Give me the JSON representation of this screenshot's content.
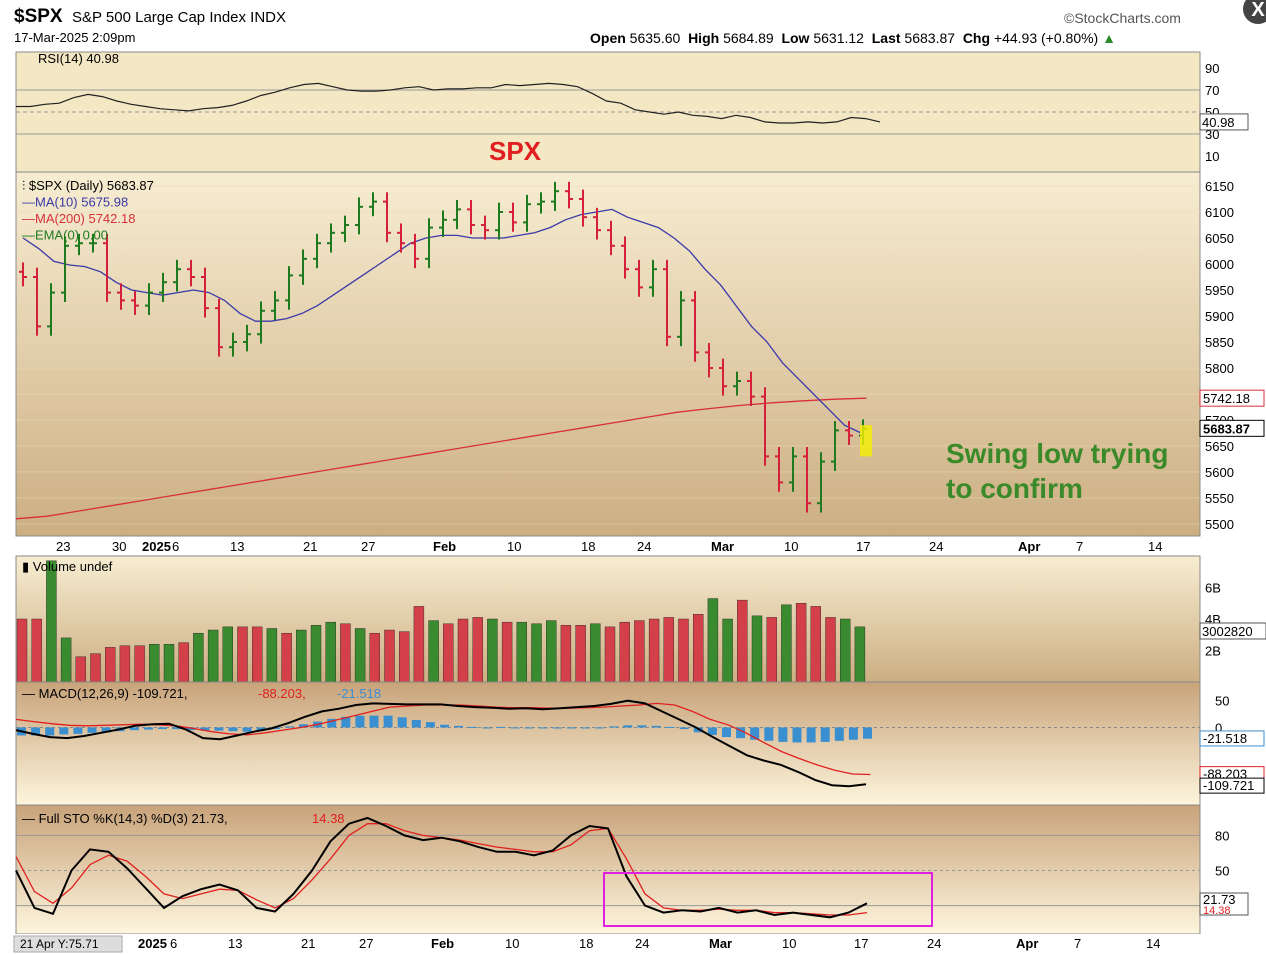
{
  "header": {
    "symbol": "$SPX",
    "name": "S&P 500 Large Cap Index  INDX",
    "date": "17-Mar-2025 2:09pm",
    "brand": "©StockCharts.com",
    "quote_open_label": "Open",
    "quote_open": "5635.60",
    "quote_high_label": "High",
    "quote_high": "5684.89",
    "quote_low_label": "Low",
    "quote_low": "5631.12",
    "quote_last_label": "Last",
    "quote_last": "5683.87",
    "quote_chg_label": "Chg",
    "quote_chg": "+44.93 (+0.80%)",
    "close_icon": "X"
  },
  "chart_data": [
    {
      "type": "line",
      "panel": "RSI",
      "legend": "RSI(14) 40.98",
      "ylim": [
        0,
        100
      ],
      "yticks": [
        "90",
        "70",
        "50",
        "30",
        "10"
      ],
      "last_value_label": "40.98",
      "values": [
        55,
        55,
        57,
        58,
        63,
        66,
        64,
        60,
        57,
        55,
        53,
        52,
        51,
        53,
        54,
        56,
        60,
        65,
        68,
        72,
        75,
        76,
        73,
        70,
        69,
        69,
        70,
        72,
        73,
        70,
        71,
        71,
        72,
        72,
        75,
        74,
        75,
        76,
        75,
        73,
        67,
        60,
        58,
        52,
        50,
        48,
        50,
        47,
        46,
        44,
        47,
        45,
        41,
        40,
        40,
        41,
        40,
        41,
        45,
        44,
        41
      ]
    },
    {
      "type": "ohlc",
      "panel": "Price",
      "title": "SPX",
      "legend": [
        "$SPX (Daily) 5683.87",
        "MA(10) 5675.98",
        "MA(200) 5742.18",
        "EMA(0) 0.00"
      ],
      "ylim": [
        5480,
        6170
      ],
      "yticks": [
        "6150",
        "6100",
        "6050",
        "6000",
        "5950",
        "5900",
        "5850",
        "5800",
        "5750",
        "5700",
        "5650",
        "5600",
        "5550",
        "5500"
      ],
      "xticks": [
        "23",
        "30",
        "2025",
        "6",
        "13",
        "21",
        "27",
        "Feb",
        "10",
        "18",
        "24",
        "Mar",
        "10",
        "17",
        "24",
        "Apr",
        "7",
        "14"
      ],
      "price_labels": [
        "5742.18",
        "5683.87"
      ],
      "annotation": "Swing low trying to confirm",
      "close": [
        5975,
        5880,
        5945,
        6035,
        6040,
        6040,
        5945,
        5930,
        5920,
        5945,
        5965,
        5990,
        5975,
        5915,
        5840,
        5850,
        5865,
        5910,
        5930,
        5978,
        6010,
        6040,
        6060,
        6075,
        6110,
        6120,
        6060,
        6040,
        6010,
        6070,
        6085,
        6105,
        6075,
        6065,
        6100,
        6080,
        6115,
        6120,
        6140,
        6125,
        6090,
        6065,
        6035,
        5990,
        5955,
        5990,
        5860,
        5930,
        5830,
        5800,
        5765,
        5775,
        5745,
        5630,
        5580,
        5630,
        5540,
        5620,
        5680,
        5670,
        5683
      ],
      "ma10": [
        6050,
        6030,
        6005,
        5998,
        5995,
        5985,
        5965,
        5950,
        5945,
        5940,
        5945,
        5950,
        5945,
        5930,
        5905,
        5890,
        5890,
        5895,
        5905,
        5920,
        5940,
        5960,
        5980,
        6000,
        6020,
        6040,
        6050,
        6055,
        6055,
        6050,
        6050,
        6050,
        6055,
        6060,
        6070,
        6085,
        6095,
        6100,
        6105,
        6090,
        6080,
        6070,
        6050,
        6025,
        5990,
        5960,
        5920,
        5880,
        5850,
        5810,
        5780,
        5750,
        5720,
        5690,
        5676
      ],
      "ma200": [
        5510,
        5515,
        5525,
        5535,
        5545,
        5555,
        5565,
        5575,
        5585,
        5595,
        5605,
        5615,
        5625,
        5635,
        5645,
        5655,
        5665,
        5675,
        5685,
        5695,
        5705,
        5715,
        5722,
        5728,
        5733,
        5737,
        5740,
        5742
      ]
    },
    {
      "type": "bar",
      "panel": "Volume",
      "legend": "Volume undef",
      "yticks": [
        "6B",
        "4B",
        "2B"
      ],
      "last_value_label": "3002820",
      "values": [
        4.0,
        4.0,
        7.7,
        2.8,
        1.6,
        1.8,
        2.2,
        2.3,
        2.3,
        2.4,
        2.4,
        2.5,
        3.1,
        3.3,
        3.5,
        3.5,
        3.5,
        3.4,
        3.1,
        3.3,
        3.6,
        3.8,
        3.7,
        3.4,
        3.1,
        3.3,
        3.2,
        4.8,
        3.9,
        3.7,
        4.0,
        4.1,
        4.0,
        3.8,
        3.8,
        3.7,
        3.9,
        3.6,
        3.6,
        3.7,
        3.5,
        3.8,
        3.9,
        4.0,
        4.1,
        4.0,
        4.3,
        5.3,
        4.0,
        5.2,
        4.2,
        4.1,
        4.9,
        5.0,
        4.8,
        4.1,
        4.0,
        3.5
      ],
      "colors": [
        "r",
        "r",
        "g",
        "g",
        "r",
        "r",
        "r",
        "r",
        "r",
        "g",
        "g",
        "r",
        "g",
        "g",
        "g",
        "r",
        "r",
        "g",
        "r",
        "g",
        "g",
        "g",
        "r",
        "g",
        "r",
        "r",
        "r",
        "r",
        "g",
        "r",
        "r",
        "r",
        "g",
        "r",
        "g",
        "g",
        "g",
        "r",
        "r",
        "g",
        "r",
        "r",
        "r",
        "r",
        "r",
        "r",
        "r",
        "g",
        "g",
        "r",
        "g",
        "r",
        "g",
        "r",
        "r",
        "r",
        "g",
        "g"
      ]
    },
    {
      "type": "line",
      "panel": "MACD",
      "legend_prefix": "MACD(12,26,9)",
      "legend_macd": "-109.721",
      "legend_signal": "-88.203",
      "legend_hist": "-21.518",
      "ylim": [
        -130,
        70
      ],
      "yticks": [
        "50",
        "0"
      ],
      "price_labels": [
        "-21.518",
        "-88.203",
        "-109.721"
      ],
      "macd": [
        -5,
        -12,
        -18,
        -20,
        -16,
        -10,
        -4,
        3,
        6,
        7,
        -4,
        -20,
        -22,
        -15,
        -8,
        -2,
        8,
        20,
        30,
        35,
        42,
        45,
        44,
        43,
        43,
        43,
        40,
        38,
        37,
        35,
        36,
        34,
        36,
        38,
        40,
        44,
        50,
        45,
        30,
        15,
        0,
        -18,
        -35,
        -52,
        -62,
        -70,
        -83,
        -98,
        -108,
        -110,
        -106
      ],
      "signal": [
        15,
        11,
        7,
        4,
        3,
        4,
        5,
        6,
        5,
        3,
        -2,
        -8,
        -12,
        -14,
        -10,
        -5,
        0,
        6,
        14,
        22,
        30,
        38,
        40,
        42,
        42,
        42,
        40,
        38,
        37,
        37,
        36,
        36,
        37,
        38,
        40,
        42,
        45,
        42,
        30,
        15,
        5,
        -10,
        -28,
        -45,
        -58,
        -70,
        -80,
        -87,
        -88
      ],
      "hist": [
        -15,
        -15,
        -15,
        -13,
        -12,
        -10,
        -9,
        -7,
        -5,
        -4,
        -3,
        -3,
        -5,
        -6,
        -6,
        -7,
        -8,
        -6,
        -3,
        2,
        6,
        11,
        16,
        20,
        22,
        22,
        22,
        19,
        14,
        10,
        5,
        3,
        1,
        0,
        1,
        0,
        -1,
        -1,
        -2,
        -1,
        0,
        0,
        2,
        4,
        4,
        3,
        1,
        -3,
        -9,
        -14,
        -18,
        -20,
        -23,
        -25,
        -27,
        -28,
        -28,
        -27,
        -25,
        -23,
        -21
      ]
    },
    {
      "type": "line",
      "panel": "Full STO",
      "legend_prefix": "Full STO %K(14,3) %D(3)",
      "legend_k": "21.73",
      "legend_d": "14.38",
      "ylim": [
        0,
        100
      ],
      "yticks": [
        "80",
        "50",
        "20"
      ],
      "price_labels": [
        "21.73",
        "14.38"
      ],
      "xticks": [
        "21 Apr Y:75.71",
        "2025",
        "6",
        "13",
        "21",
        "27",
        "Feb",
        "10",
        "18",
        "24",
        "Mar",
        "10",
        "17",
        "24",
        "Apr",
        "7",
        "14"
      ],
      "k": [
        50,
        18,
        13,
        50,
        68,
        66,
        52,
        35,
        18,
        28,
        34,
        38,
        33,
        18,
        15,
        30,
        50,
        75,
        90,
        95,
        88,
        80,
        76,
        78,
        75,
        70,
        66,
        66,
        63,
        67,
        80,
        88,
        86,
        45,
        20,
        14,
        16,
        15,
        18,
        14,
        16,
        12,
        14,
        12,
        10,
        14,
        22
      ],
      "d": [
        62,
        32,
        22,
        35,
        55,
        63,
        58,
        45,
        30,
        26,
        30,
        34,
        33,
        25,
        18,
        26,
        42,
        60,
        80,
        90,
        90,
        84,
        80,
        78,
        76,
        73,
        70,
        68,
        66,
        66,
        72,
        84,
        86,
        60,
        30,
        18,
        16,
        16,
        17,
        16,
        16,
        14,
        14,
        13,
        12,
        12,
        14
      ]
    }
  ]
}
